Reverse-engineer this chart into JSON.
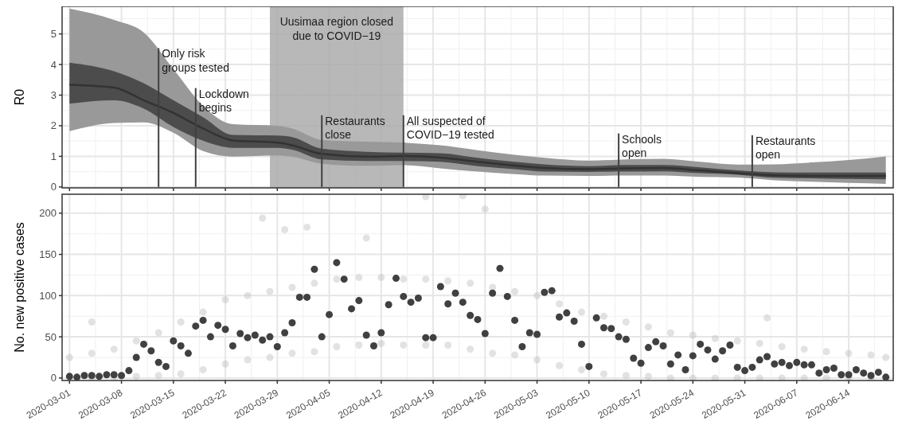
{
  "chart_data": [
    {
      "type": "line",
      "ylabel": "R0",
      "x": [
        "2020-03-01",
        "2020-03-07",
        "2020-03-11",
        "2020-03-15",
        "2020-03-19",
        "2020-03-23",
        "2020-03-29",
        "2020-03-31",
        "2020-04-04",
        "2020-04-10",
        "2020-04-15",
        "2020-04-20",
        "2020-04-25",
        "2020-04-30",
        "2020-05-04",
        "2020-05-10",
        "2020-05-15",
        "2020-05-20",
        "2020-05-25",
        "2020-05-30",
        "2020-06-04",
        "2020-06-09",
        "2020-06-14",
        "2020-06-19"
      ],
      "series": [
        {
          "color": "#999999",
          "values": [
            null,
            null,
            null,
            null,
            null,
            null,
            null,
            null,
            null,
            null,
            null,
            null,
            null,
            null,
            null,
            null,
            null,
            null,
            null,
            null,
            null,
            null,
            null,
            null
          ],
          "upper": [
            5.83,
            5.46,
            5.05,
            3.85,
            2.65,
            2.05,
            2.0,
            1.91,
            1.54,
            1.48,
            1.45,
            1.36,
            1.2,
            1.05,
            0.95,
            0.86,
            0.9,
            0.92,
            0.82,
            0.73,
            0.74,
            0.8,
            0.88,
            1.0
          ],
          "lower": [
            1.82,
            2.09,
            2.11,
            1.77,
            1.17,
            0.99,
            1.03,
            0.99,
            0.76,
            0.69,
            0.71,
            0.61,
            0.5,
            0.42,
            0.37,
            0.36,
            0.37,
            0.37,
            0.33,
            0.31,
            0.22,
            0.17,
            0.13,
            0.1
          ]
        },
        {
          "color": "#333333",
          "values": [
            3.34,
            3.25,
            2.83,
            2.42,
            1.91,
            1.52,
            1.45,
            1.36,
            1.08,
            0.99,
            1.01,
            0.96,
            0.82,
            0.7,
            0.62,
            0.58,
            0.61,
            0.62,
            0.54,
            0.45,
            0.38,
            0.36,
            0.36,
            0.36
          ],
          "lower": [
            2.72,
            2.83,
            2.56,
            1.96,
            1.51,
            1.28,
            1.28,
            1.22,
            0.9,
            0.85,
            0.85,
            0.82,
            0.68,
            0.58,
            0.5,
            0.49,
            0.5,
            0.51,
            0.45,
            0.4,
            0.3,
            0.28,
            0.26,
            0.25
          ],
          "upper": [
            4.06,
            3.78,
            3.39,
            2.83,
            2.28,
            1.7,
            1.68,
            1.63,
            1.25,
            1.15,
            1.12,
            1.1,
            0.95,
            0.82,
            0.74,
            0.68,
            0.72,
            0.72,
            0.64,
            0.54,
            0.48,
            0.47,
            0.47,
            0.47
          ]
        }
      ],
      "ref_lines": [
        {
          "axis": "x",
          "value": "2020-03-13",
          "label": "Only risk\ngroups tested",
          "color": "#404040"
        },
        {
          "axis": "x",
          "value": "2020-03-18",
          "label": "Lockdown\nbegins",
          "color": "#404040"
        },
        {
          "axis": "x",
          "value": "2020-04-04",
          "label": "Restaurants\nclose",
          "color": "#404040"
        },
        {
          "axis": "x",
          "value": "2020-04-15",
          "label": "All suspected of\nCOVID−19 tested",
          "color": "#404040"
        },
        {
          "axis": "x",
          "value": "2020-05-14",
          "label": "Schools\nopen",
          "color": "#404040"
        },
        {
          "axis": "x",
          "value": "2020-06-01",
          "label": "Restaurants\nopen",
          "color": "#404040"
        }
      ],
      "bands": [
        {
          "axis": "x",
          "from": "2020-03-28",
          "to": "2020-04-15",
          "label": "Uusimaa region closed\ndue to COVID−19",
          "color": "#a6a6a6"
        }
      ],
      "xlim": [
        "2020-02-29",
        "2020-06-20"
      ],
      "xticks": [
        "2020-03-01",
        "2020-03-08",
        "2020-03-15",
        "2020-03-22",
        "2020-03-29",
        "2020-04-05",
        "2020-04-12",
        "2020-04-19",
        "2020-04-26",
        "2020-05-03",
        "2020-05-10",
        "2020-05-17",
        "2020-05-24",
        "2020-05-31",
        "2020-06-07",
        "2020-06-14"
      ],
      "ylim": [
        -0.03,
        5.9
      ],
      "yticks": [
        0,
        1,
        2,
        3,
        4,
        5
      ],
      "tick_labels": "y",
      "grid": true
    },
    {
      "type": "scatter",
      "ylabel": "No. new positive cases",
      "x": [
        "2020-03-01",
        "2020-03-02",
        "2020-03-03",
        "2020-03-04",
        "2020-03-05",
        "2020-03-06",
        "2020-03-07",
        "2020-03-08",
        "2020-03-09",
        "2020-03-10",
        "2020-03-11",
        "2020-03-12",
        "2020-03-13",
        "2020-03-14",
        "2020-03-15",
        "2020-03-16",
        "2020-03-17",
        "2020-03-18",
        "2020-03-19",
        "2020-03-20",
        "2020-03-21",
        "2020-03-22",
        "2020-03-23",
        "2020-03-24",
        "2020-03-25",
        "2020-03-26",
        "2020-03-27",
        "2020-03-28",
        "2020-03-29",
        "2020-03-30",
        "2020-03-31",
        "2020-04-01",
        "2020-04-02",
        "2020-04-03",
        "2020-04-04",
        "2020-04-05",
        "2020-04-06",
        "2020-04-07",
        "2020-04-08",
        "2020-04-09",
        "2020-04-10",
        "2020-04-11",
        "2020-04-12",
        "2020-04-13",
        "2020-04-14",
        "2020-04-15",
        "2020-04-16",
        "2020-04-17",
        "2020-04-18",
        "2020-04-19",
        "2020-04-20",
        "2020-04-21",
        "2020-04-22",
        "2020-04-23",
        "2020-04-24",
        "2020-04-25",
        "2020-04-26",
        "2020-04-27",
        "2020-04-28",
        "2020-04-29",
        "2020-04-30",
        "2020-05-01",
        "2020-05-02",
        "2020-05-03",
        "2020-05-04",
        "2020-05-05",
        "2020-05-06",
        "2020-05-07",
        "2020-05-08",
        "2020-05-09",
        "2020-05-10",
        "2020-05-11",
        "2020-05-12",
        "2020-05-13",
        "2020-05-14",
        "2020-05-15",
        "2020-05-16",
        "2020-05-17",
        "2020-05-18",
        "2020-05-19",
        "2020-05-20",
        "2020-05-21",
        "2020-05-22",
        "2020-05-23",
        "2020-05-24",
        "2020-05-25",
        "2020-05-26",
        "2020-05-27",
        "2020-05-28",
        "2020-05-29",
        "2020-05-30",
        "2020-05-31",
        "2020-06-01",
        "2020-06-02",
        "2020-06-03",
        "2020-06-04",
        "2020-06-05",
        "2020-06-06",
        "2020-06-07",
        "2020-06-08",
        "2020-06-09",
        "2020-06-10",
        "2020-06-11",
        "2020-06-12",
        "2020-06-13",
        "2020-06-14",
        "2020-06-15",
        "2020-06-16",
        "2020-06-17",
        "2020-06-18",
        "2020-06-19"
      ],
      "series": [
        {
          "color": "#bebebe",
          "x": [
            "2020-03-01",
            "2020-03-01",
            "2020-03-04",
            "2020-03-04",
            "2020-03-07",
            "2020-03-07",
            "2020-03-10",
            "2020-03-10",
            "2020-03-13",
            "2020-03-13",
            "2020-03-16",
            "2020-03-16",
            "2020-03-19",
            "2020-03-19",
            "2020-03-22",
            "2020-03-22",
            "2020-03-25",
            "2020-03-25",
            "2020-03-28",
            "2020-03-28",
            "2020-03-31",
            "2020-03-31",
            "2020-04-03",
            "2020-04-03",
            "2020-04-06",
            "2020-04-06",
            "2020-04-09",
            "2020-04-09",
            "2020-04-12",
            "2020-04-12",
            "2020-04-15",
            "2020-04-15",
            "2020-04-18",
            "2020-04-18",
            "2020-04-21",
            "2020-04-21",
            "2020-04-24",
            "2020-04-24",
            "2020-04-27",
            "2020-04-27",
            "2020-04-30",
            "2020-04-30",
            "2020-05-03",
            "2020-05-03",
            "2020-05-06",
            "2020-05-06",
            "2020-05-09",
            "2020-05-09",
            "2020-05-12",
            "2020-05-12",
            "2020-05-15",
            "2020-05-15",
            "2020-05-18",
            "2020-05-18",
            "2020-05-21",
            "2020-05-21",
            "2020-05-24",
            "2020-05-24",
            "2020-05-27",
            "2020-05-27",
            "2020-05-30",
            "2020-05-30",
            "2020-06-02",
            "2020-06-02",
            "2020-06-05",
            "2020-06-05",
            "2020-06-08",
            "2020-06-08",
            "2020-06-11",
            "2020-06-11",
            "2020-06-14",
            "2020-06-14",
            "2020-06-17",
            "2020-06-17",
            "2020-06-19",
            "2020-03-04",
            "2020-03-27",
            "2020-03-30",
            "2020-04-02",
            "2020-04-10",
            "2020-04-18",
            "2020-04-23",
            "2020-04-26",
            "2020-06-03"
          ],
          "values": [
            0,
            25,
            0,
            30,
            0,
            35,
            2,
            45,
            3,
            55,
            5,
            68,
            10,
            80,
            17,
            95,
            22,
            100,
            25,
            105,
            30,
            110,
            32,
            115,
            38,
            120,
            40,
            122,
            42,
            122,
            40,
            120,
            40,
            120,
            40,
            118,
            35,
            115,
            30,
            110,
            28,
            105,
            22,
            100,
            15,
            90,
            10,
            80,
            5,
            75,
            3,
            68,
            2,
            62,
            0,
            55,
            0,
            52,
            0,
            48,
            0,
            45,
            0,
            42,
            0,
            38,
            0,
            35,
            0,
            32,
            0,
            30,
            0,
            28,
            25,
            68,
            194,
            180,
            183,
            170,
            220,
            221,
            205,
            73
          ]
        },
        {
          "color": "#404040",
          "values": [
            2,
            1,
            3,
            3,
            2,
            4,
            4,
            3,
            9,
            25,
            41,
            33,
            19,
            14,
            45,
            39,
            30,
            63,
            70,
            50,
            64,
            59,
            39,
            54,
            49,
            52,
            46,
            50,
            38,
            55,
            67,
            98,
            98,
            132,
            50,
            77,
            140,
            120,
            84,
            94,
            52,
            39,
            55,
            89,
            121,
            99,
            92,
            97,
            49,
            49,
            111,
            90,
            103,
            92,
            76,
            71,
            54,
            103,
            133,
            99,
            70,
            38,
            55,
            53,
            104,
            106,
            74,
            79,
            69,
            41,
            14,
            73,
            61,
            60,
            50,
            47,
            24,
            18,
            37,
            44,
            39,
            17,
            28,
            10,
            27,
            41,
            34,
            23,
            33,
            40,
            13,
            9,
            13,
            22,
            26,
            17,
            19,
            15,
            19,
            16,
            16,
            6,
            10,
            12,
            4,
            4,
            10,
            6,
            3,
            7,
            1
          ]
        }
      ],
      "xlim": [
        "2020-02-29",
        "2020-06-20"
      ],
      "xticks": [
        "2020-03-01",
        "2020-03-08",
        "2020-03-15",
        "2020-03-22",
        "2020-03-29",
        "2020-04-05",
        "2020-04-12",
        "2020-04-19",
        "2020-04-26",
        "2020-05-03",
        "2020-05-10",
        "2020-05-17",
        "2020-05-24",
        "2020-05-31",
        "2020-06-07",
        "2020-06-14"
      ],
      "ylim": [
        -3,
        223
      ],
      "yticks": [
        0,
        50,
        100,
        150,
        200
      ],
      "grid": true,
      "marker": "circle"
    }
  ]
}
